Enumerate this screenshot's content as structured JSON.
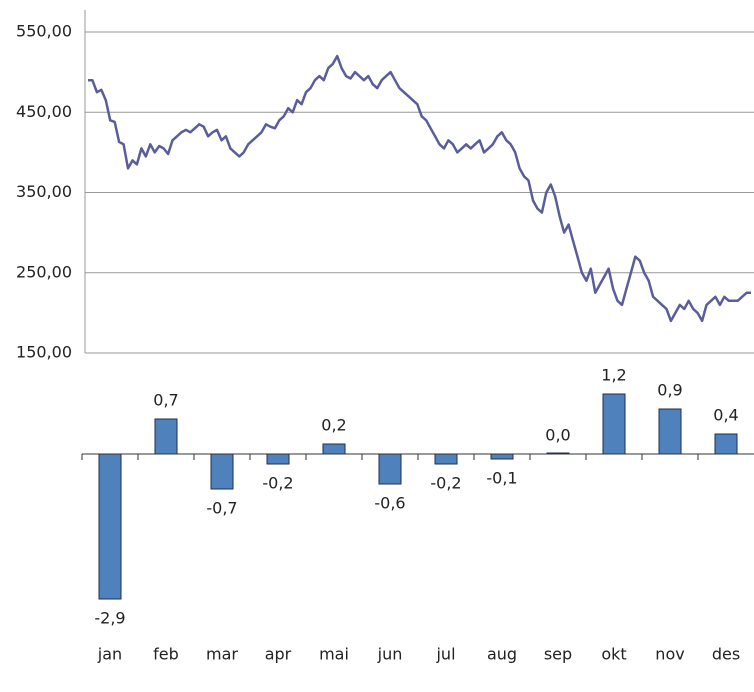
{
  "chart_data": [
    {
      "type": "line",
      "color": "#5a5d9a",
      "ylim": [
        150,
        550
      ],
      "yticks": [
        {
          "value": 150,
          "label": "150,00"
        },
        {
          "value": 250,
          "label": "250,00"
        },
        {
          "value": 350,
          "label": "350,00"
        },
        {
          "value": 450,
          "label": "450,00"
        },
        {
          "value": 550,
          "label": "550,00"
        }
      ],
      "grid": true,
      "values": [
        490,
        490,
        475,
        478,
        465,
        440,
        438,
        413,
        410,
        380,
        390,
        385,
        405,
        395,
        410,
        400,
        408,
        405,
        398,
        415,
        420,
        425,
        428,
        425,
        430,
        435,
        432,
        420,
        425,
        428,
        415,
        420,
        405,
        400,
        395,
        400,
        410,
        415,
        420,
        425,
        435,
        432,
        430,
        440,
        445,
        455,
        450,
        465,
        460,
        475,
        480,
        490,
        495,
        490,
        505,
        510,
        520,
        505,
        495,
        492,
        500,
        495,
        490,
        495,
        485,
        480,
        490,
        495,
        500,
        490,
        480,
        475,
        470,
        465,
        460,
        445,
        440,
        430,
        420,
        410,
        405,
        415,
        410,
        400,
        405,
        410,
        405,
        410,
        415,
        400,
        405,
        410,
        420,
        425,
        415,
        410,
        400,
        380,
        370,
        365,
        340,
        330,
        325,
        350,
        360,
        345,
        320,
        300,
        310,
        290,
        270,
        250,
        240,
        255,
        225,
        235,
        245,
        255,
        230,
        215,
        210,
        230,
        250,
        270,
        265,
        250,
        240,
        220,
        215,
        210,
        205,
        190,
        200,
        210,
        205,
        215,
        205,
        200,
        190,
        210,
        215,
        220,
        210,
        220,
        215,
        215,
        215,
        220,
        225,
        225
      ]
    },
    {
      "type": "bar",
      "color": "#4f81bd",
      "categories": [
        "jan",
        "feb",
        "mar",
        "apr",
        "mai",
        "jun",
        "jul",
        "aug",
        "sep",
        "okt",
        "nov",
        "des"
      ],
      "values": [
        -2.9,
        0.7,
        -0.7,
        -0.2,
        0.2,
        -0.6,
        -0.2,
        -0.1,
        0.0,
        1.2,
        0.9,
        0.4
      ],
      "value_labels": [
        "-2,9",
        "0,7",
        "-0,7",
        "-0,2",
        "0,2",
        "-0,6",
        "-0,2",
        "-0,1",
        "0,0",
        "1,2",
        "0,9",
        "0,4"
      ]
    }
  ]
}
